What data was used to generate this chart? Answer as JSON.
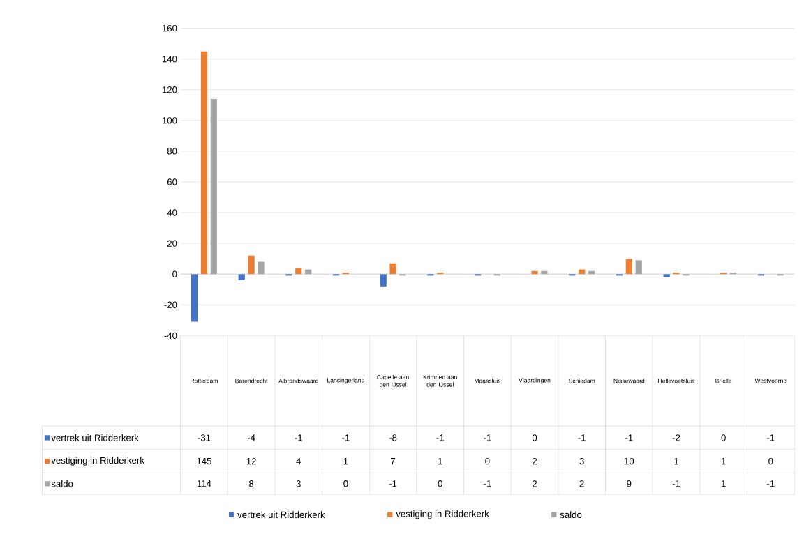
{
  "chart_data": {
    "type": "bar",
    "categories": [
      "Rotterdam",
      "Barendrecht",
      "Albrandswaard",
      "Lansingerland",
      "Capelle aan den IJssel",
      "Krimpen aan den IJssel",
      "Maassluis",
      "Vlaardingen",
      "Schiedam",
      "Nissewaard",
      "Hellevoetsluis",
      "Brielle",
      "Westvoorne"
    ],
    "series": [
      {
        "name": "vertrek uit Ridderkerk",
        "color": "#4472c4",
        "values": [
          -31,
          -4,
          -1,
          -1,
          -8,
          -1,
          -1,
          0,
          -1,
          -1,
          -2,
          0,
          -1
        ]
      },
      {
        "name": "vestiging in Ridderkerk",
        "color": "#ed7d31",
        "values": [
          145,
          12,
          4,
          1,
          7,
          1,
          0,
          2,
          3,
          10,
          1,
          1,
          0
        ]
      },
      {
        "name": "saldo",
        "color": "#a5a5a5",
        "values": [
          114,
          8,
          3,
          0,
          -1,
          0,
          -1,
          2,
          2,
          9,
          -1,
          1,
          -1
        ]
      }
    ],
    "ylim": [
      -40,
      160
    ],
    "yticks": [
      -40,
      -20,
      0,
      20,
      40,
      60,
      80,
      100,
      120,
      140,
      160
    ],
    "grid": "y",
    "legend": "bottom",
    "data_labels": true
  }
}
